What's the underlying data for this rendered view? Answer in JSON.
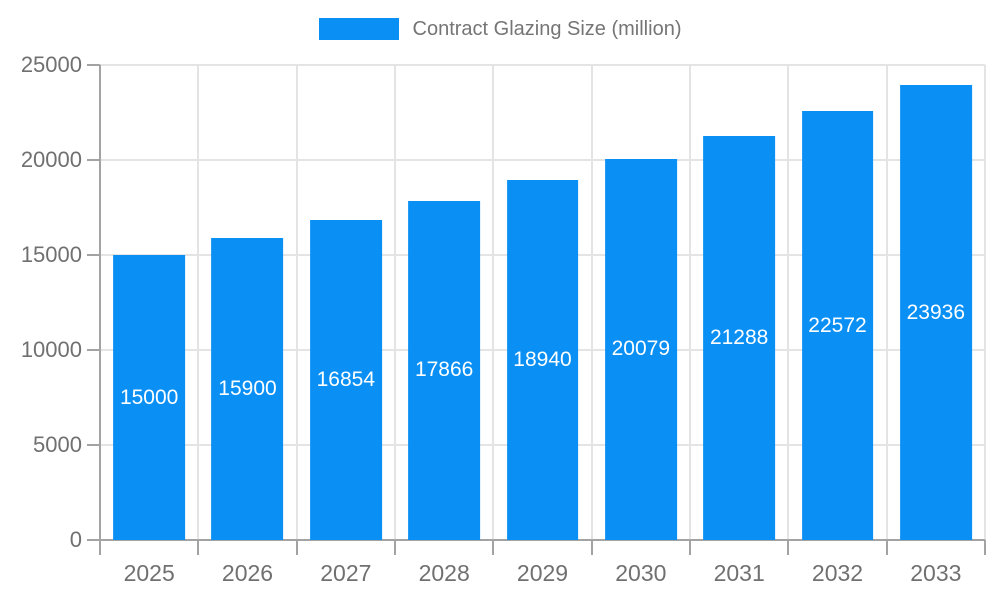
{
  "chart_data": {
    "type": "bar",
    "title": "Contract Glazing Size (million)",
    "legend": {
      "label": "Contract Glazing Size (million)",
      "position": "top-center"
    },
    "categories": [
      "2025",
      "2026",
      "2027",
      "2028",
      "2029",
      "2030",
      "2031",
      "2032",
      "2033"
    ],
    "series": [
      {
        "name": "Contract Glazing Size (million)",
        "values": [
          15000,
          15900,
          16854,
          17866,
          18940,
          20079,
          21288,
          22572,
          23936
        ]
      }
    ],
    "xlabel": "",
    "ylabel": "",
    "ylim": [
      0,
      25000
    ],
    "y_ticks": [
      0,
      5000,
      10000,
      15000,
      20000,
      25000
    ],
    "grid": true,
    "bar_labels_inside": true,
    "colors": {
      "bar": "#0a90f5",
      "bar_label_text": "#ffffff",
      "axis_label_text": "#707070",
      "legend_text": "#757575",
      "grid_line": "#e4e4e4",
      "axis_line": "#a3a3a3",
      "background": "#ffffff"
    }
  }
}
